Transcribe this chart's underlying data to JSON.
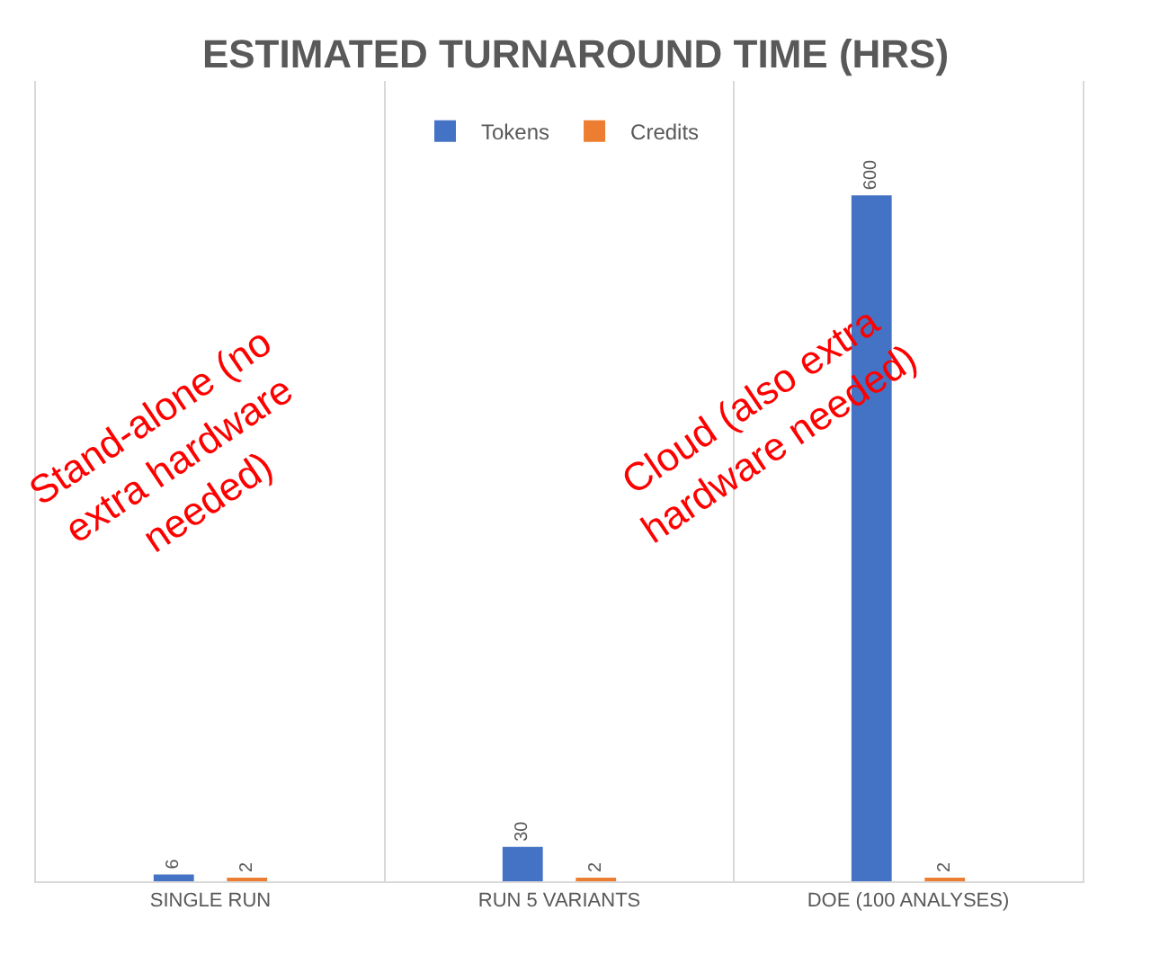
{
  "chart_data": {
    "type": "bar",
    "title": "ESTIMATED TURNAROUND TIME (HRS)",
    "categories": [
      "SINGLE RUN",
      "RUN 5 VARIANTS",
      "DOE (100 ANALYSES)"
    ],
    "series": [
      {
        "name": "Tokens",
        "color": "#4472c4",
        "values": [
          6,
          30,
          600
        ]
      },
      {
        "name": "Credits",
        "color": "#ed7d31",
        "values": [
          2,
          2,
          2
        ]
      }
    ],
    "ylim": [
      0,
      700
    ],
    "data_labels": true,
    "grid": "x",
    "legend": "top",
    "tick_labels": "x",
    "annotations": [
      "Stand-alone (no extra hardware needed)",
      "Cloud (also extra hardware needed)"
    ]
  }
}
